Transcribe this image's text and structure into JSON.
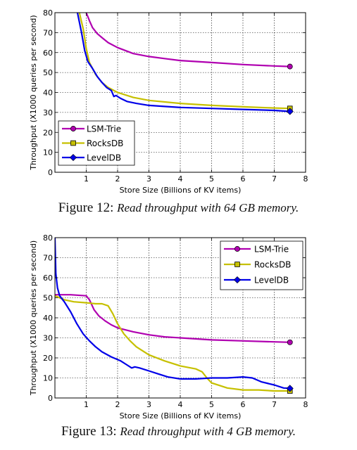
{
  "figures": [
    {
      "caption_label": "Figure 12:",
      "caption_text": "Read throughput with 64 GB memory."
    },
    {
      "caption_label": "Figure 13:",
      "caption_text": "Read throughput with 4 GB memory."
    }
  ],
  "chart_data": [
    {
      "type": "line",
      "title": "",
      "xlabel": "Store Size (Billions of KV items)",
      "ylabel": "Throughput (X1000 queries per second)",
      "xlim": [
        0,
        8
      ],
      "ylim": [
        0,
        80
      ],
      "xticks": [
        1,
        2,
        3,
        4,
        5,
        6,
        7,
        8
      ],
      "yticks": [
        0,
        10,
        20,
        30,
        40,
        50,
        60,
        70,
        80
      ],
      "grid": true,
      "legend_position": "lower-left",
      "series": [
        {
          "name": "LSM-Trie",
          "color": "#b000b0",
          "marker": "circle",
          "points": [
            [
              1.0,
              80
            ],
            [
              1.1,
              76
            ],
            [
              1.2,
              72.5
            ],
            [
              1.35,
              69.5
            ],
            [
              1.5,
              67.5
            ],
            [
              1.7,
              65
            ],
            [
              2.0,
              62.5
            ],
            [
              2.5,
              59.5
            ],
            [
              3.0,
              58
            ],
            [
              3.5,
              57
            ],
            [
              4.0,
              56
            ],
            [
              5.0,
              55
            ],
            [
              6.0,
              54
            ],
            [
              7.0,
              53.3
            ],
            [
              7.5,
              53
            ]
          ]
        },
        {
          "name": "RocksDB",
          "color": "#c6c000",
          "marker": "square",
          "points": [
            [
              0.78,
              80
            ],
            [
              0.9,
              72
            ],
            [
              1.0,
              62
            ],
            [
              1.1,
              55
            ],
            [
              1.3,
              49
            ],
            [
              1.5,
              45
            ],
            [
              1.7,
              42.5
            ],
            [
              2.0,
              40
            ],
            [
              2.5,
              37.5
            ],
            [
              3.0,
              36
            ],
            [
              4.0,
              34.5
            ],
            [
              5.0,
              33.5
            ],
            [
              6.0,
              32.8
            ],
            [
              7.0,
              32.2
            ],
            [
              7.5,
              32
            ]
          ]
        },
        {
          "name": "LevelDB",
          "color": "#0000e8",
          "marker": "diamond",
          "points": [
            [
              0.72,
              80
            ],
            [
              0.85,
              70
            ],
            [
              0.95,
              61
            ],
            [
              1.05,
              55.5
            ],
            [
              1.2,
              52
            ],
            [
              1.35,
              48
            ],
            [
              1.5,
              45
            ],
            [
              1.65,
              42.5
            ],
            [
              1.8,
              41
            ],
            [
              1.88,
              38
            ],
            [
              1.95,
              38.5
            ],
            [
              2.1,
              37
            ],
            [
              2.3,
              35.5
            ],
            [
              2.6,
              34.5
            ],
            [
              3.0,
              33.5
            ],
            [
              3.5,
              33
            ],
            [
              4.0,
              32.5
            ],
            [
              5.0,
              32
            ],
            [
              6.0,
              31.5
            ],
            [
              7.0,
              31
            ],
            [
              7.5,
              30.5
            ]
          ]
        }
      ]
    },
    {
      "type": "line",
      "title": "",
      "xlabel": "Store Size (Billions of KV items)",
      "ylabel": "Throughput (X1000 queries per second)",
      "xlim": [
        0,
        8
      ],
      "ylim": [
        0,
        80
      ],
      "xticks": [
        1,
        2,
        3,
        4,
        5,
        6,
        7,
        8
      ],
      "yticks": [
        0,
        10,
        20,
        30,
        40,
        50,
        60,
        70,
        80
      ],
      "grid": true,
      "legend_position": "top-right",
      "series": [
        {
          "name": "LSM-Trie",
          "color": "#b000b0",
          "marker": "circle",
          "points": [
            [
              0.0,
              51.5
            ],
            [
              0.5,
              51.5
            ],
            [
              1.0,
              51
            ],
            [
              1.1,
              49
            ],
            [
              1.25,
              44
            ],
            [
              1.4,
              41
            ],
            [
              1.6,
              38.5
            ],
            [
              1.8,
              36.5
            ],
            [
              2.0,
              35
            ],
            [
              2.5,
              33
            ],
            [
              3.0,
              31.5
            ],
            [
              3.5,
              30.5
            ],
            [
              4.0,
              30
            ],
            [
              5.0,
              29
            ],
            [
              6.0,
              28.5
            ],
            [
              7.0,
              28
            ],
            [
              7.5,
              27.8
            ]
          ]
        },
        {
          "name": "RocksDB",
          "color": "#c6c000",
          "marker": "square",
          "points": [
            [
              0.0,
              51
            ],
            [
              0.3,
              49
            ],
            [
              0.6,
              48
            ],
            [
              1.0,
              47.5
            ],
            [
              1.3,
              47
            ],
            [
              1.5,
              47
            ],
            [
              1.7,
              46
            ],
            [
              1.85,
              42
            ],
            [
              2.0,
              37
            ],
            [
              2.2,
              32
            ],
            [
              2.4,
              28.5
            ],
            [
              2.6,
              25.5
            ],
            [
              3.0,
              21.5
            ],
            [
              3.5,
              18.5
            ],
            [
              4.0,
              16
            ],
            [
              4.5,
              14.5
            ],
            [
              4.7,
              13
            ],
            [
              4.85,
              10
            ],
            [
              5.0,
              7.5
            ],
            [
              5.5,
              5
            ],
            [
              6.0,
              4
            ],
            [
              6.5,
              4
            ],
            [
              7.0,
              3.5
            ],
            [
              7.5,
              3.5
            ]
          ]
        },
        {
          "name": "LevelDB",
          "color": "#0000e8",
          "marker": "diamond",
          "points": [
            [
              0.0,
              80
            ],
            [
              0.03,
              62
            ],
            [
              0.08,
              55
            ],
            [
              0.15,
              51
            ],
            [
              0.3,
              48
            ],
            [
              0.5,
              43
            ],
            [
              0.7,
              37
            ],
            [
              0.9,
              32
            ],
            [
              1.1,
              28.5
            ],
            [
              1.3,
              25.5
            ],
            [
              1.5,
              23
            ],
            [
              1.8,
              20.5
            ],
            [
              2.1,
              18.5
            ],
            [
              2.3,
              16.5
            ],
            [
              2.45,
              15
            ],
            [
              2.55,
              15.5
            ],
            [
              2.7,
              15
            ],
            [
              3.0,
              13.5
            ],
            [
              3.3,
              12
            ],
            [
              3.6,
              10.5
            ],
            [
              4.0,
              9.5
            ],
            [
              4.5,
              9.5
            ],
            [
              5.0,
              10
            ],
            [
              5.5,
              10
            ],
            [
              6.0,
              10.5
            ],
            [
              6.3,
              10
            ],
            [
              6.6,
              8
            ],
            [
              7.0,
              6.5
            ],
            [
              7.3,
              5
            ],
            [
              7.5,
              4.8
            ]
          ]
        }
      ]
    }
  ]
}
